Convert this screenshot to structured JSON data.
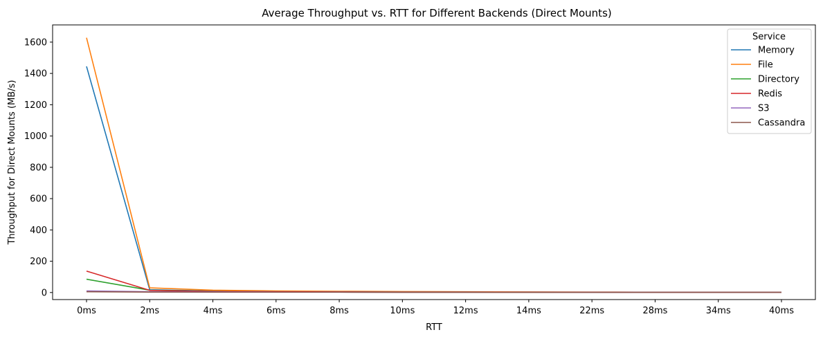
{
  "chart_data": {
    "type": "line",
    "title": "Average Throughput vs. RTT for Different Backends (Direct Mounts)",
    "xlabel": "RTT",
    "ylabel": "Throughput for Direct Mounts (MB/s)",
    "categories": [
      "0ms",
      "2ms",
      "4ms",
      "6ms",
      "8ms",
      "10ms",
      "12ms",
      "14ms",
      "22ms",
      "28ms",
      "34ms",
      "40ms"
    ],
    "ylim": [
      -45,
      1710
    ],
    "yticks": [
      0,
      200,
      400,
      600,
      800,
      1000,
      1200,
      1400,
      1600
    ],
    "grid": false,
    "legend": {
      "title": "Service",
      "placement": "top-right"
    },
    "series": [
      {
        "name": "Memory",
        "color": "#1f77b4",
        "values": [
          1445,
          18,
          10,
          7,
          5,
          4,
          3,
          3,
          2,
          1.5,
          1.2,
          1
        ]
      },
      {
        "name": "File",
        "color": "#ff7f0e",
        "values": [
          1628,
          30,
          15,
          10,
          8,
          6,
          5,
          4,
          3,
          2,
          2,
          1.5
        ]
      },
      {
        "name": "Directory",
        "color": "#2ca02c",
        "values": [
          85,
          15,
          8,
          5,
          4,
          3,
          3,
          2,
          2,
          1,
          1,
          1
        ]
      },
      {
        "name": "Redis",
        "color": "#d62728",
        "values": [
          137,
          14,
          7,
          5,
          4,
          3,
          3,
          2,
          2,
          1,
          1,
          1
        ]
      },
      {
        "name": "S3",
        "color": "#9467bd",
        "values": [
          10,
          5,
          4,
          3,
          3,
          2,
          2,
          2,
          1,
          1,
          1,
          1
        ]
      },
      {
        "name": "Cassandra",
        "color": "#8c564b",
        "values": [
          5,
          3,
          2,
          2,
          2,
          1,
          1,
          1,
          1,
          1,
          1,
          1
        ]
      }
    ]
  }
}
